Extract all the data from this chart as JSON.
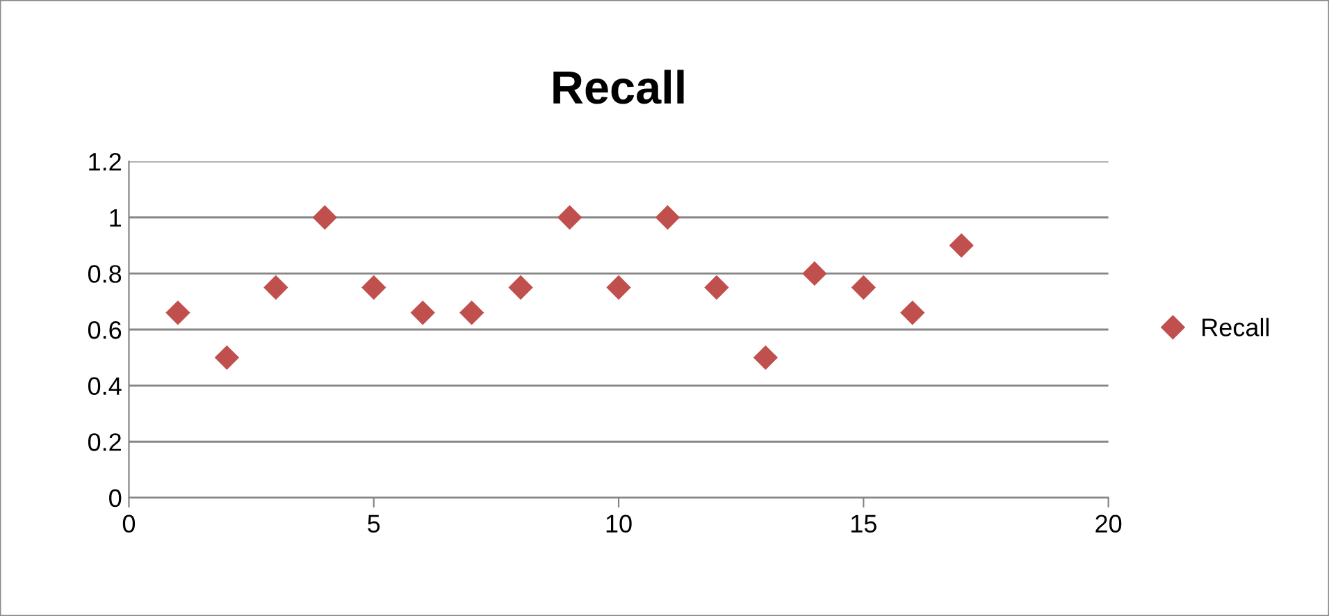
{
  "chart_data": {
    "type": "scatter",
    "title": "Recall",
    "x": [
      1,
      2,
      3,
      4,
      5,
      6,
      7,
      8,
      9,
      10,
      11,
      12,
      13,
      14,
      15,
      16,
      17
    ],
    "series": [
      {
        "name": "Recall",
        "color": "#c0504d",
        "values": [
          0.66,
          0.5,
          0.75,
          1,
          0.75,
          0.66,
          0.66,
          0.75,
          1,
          0.75,
          1,
          0.75,
          0.5,
          0.8,
          0.75,
          0.66,
          0.9
        ]
      }
    ],
    "xlim": [
      0,
      20
    ],
    "xticks": [
      0,
      5,
      10,
      15,
      20
    ],
    "ylim": [
      0,
      1.2
    ],
    "yticks": [
      0,
      {
        "value": 0.2,
        "label": "0.2"
      },
      {
        "value": 0.4,
        "label": "0.4"
      },
      {
        "value": 0.6,
        "label": "0.6"
      },
      {
        "value": 0.8,
        "label": "0.8"
      },
      1,
      {
        "value": 1.2,
        "label": "1.2"
      }
    ],
    "grid": "y",
    "legend": "right",
    "marker": "diamond"
  }
}
